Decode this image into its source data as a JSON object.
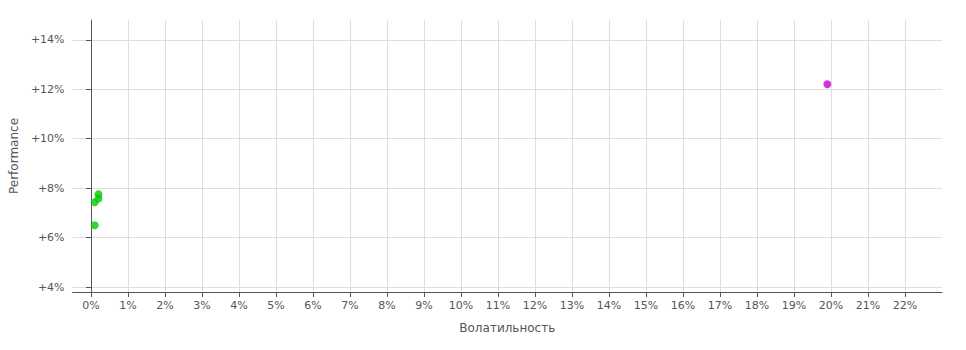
{
  "chart_data": {
    "type": "scatter",
    "xlabel": "Волатильность",
    "ylabel": "Performance",
    "xlim": [
      -0.005,
      0.23
    ],
    "ylim": [
      0.038,
      0.148
    ],
    "xticks": [
      {
        "value": 0.0,
        "label": "0%"
      },
      {
        "value": 0.01,
        "label": "1%"
      },
      {
        "value": 0.02,
        "label": "2%"
      },
      {
        "value": 0.03,
        "label": "3%"
      },
      {
        "value": 0.04,
        "label": "4%"
      },
      {
        "value": 0.05,
        "label": "5%"
      },
      {
        "value": 0.06,
        "label": "6%"
      },
      {
        "value": 0.07,
        "label": "7%"
      },
      {
        "value": 0.08,
        "label": "8%"
      },
      {
        "value": 0.09,
        "label": "9%"
      },
      {
        "value": 0.1,
        "label": "10%"
      },
      {
        "value": 0.11,
        "label": "11%"
      },
      {
        "value": 0.12,
        "label": "12%"
      },
      {
        "value": 0.13,
        "label": "13%"
      },
      {
        "value": 0.14,
        "label": "14%"
      },
      {
        "value": 0.15,
        "label": "15%"
      },
      {
        "value": 0.16,
        "label": "16%"
      },
      {
        "value": 0.17,
        "label": "17%"
      },
      {
        "value": 0.18,
        "label": "18%"
      },
      {
        "value": 0.19,
        "label": "19%"
      },
      {
        "value": 0.2,
        "label": "20%"
      },
      {
        "value": 0.21,
        "label": "21%"
      },
      {
        "value": 0.22,
        "label": "22%"
      }
    ],
    "yticks": [
      {
        "value": 0.04,
        "label": "+4%"
      },
      {
        "value": 0.06,
        "label": "+6%"
      },
      {
        "value": 0.08,
        "label": "+8%"
      },
      {
        "value": 0.1,
        "label": "+10%"
      },
      {
        "value": 0.12,
        "label": "+12%"
      },
      {
        "value": 0.14,
        "label": "+14%"
      }
    ],
    "grid": true,
    "series": [
      {
        "color": "#00cc00",
        "marker": "circle",
        "x": [
          0.002,
          0.002,
          0.001,
          0.001
        ],
        "values": [
          0.0775,
          0.0758,
          0.0743,
          0.065
        ]
      },
      {
        "color": "#cc00cc",
        "marker": "circle",
        "x": [
          0.199
        ],
        "values": [
          0.122
        ]
      }
    ]
  }
}
